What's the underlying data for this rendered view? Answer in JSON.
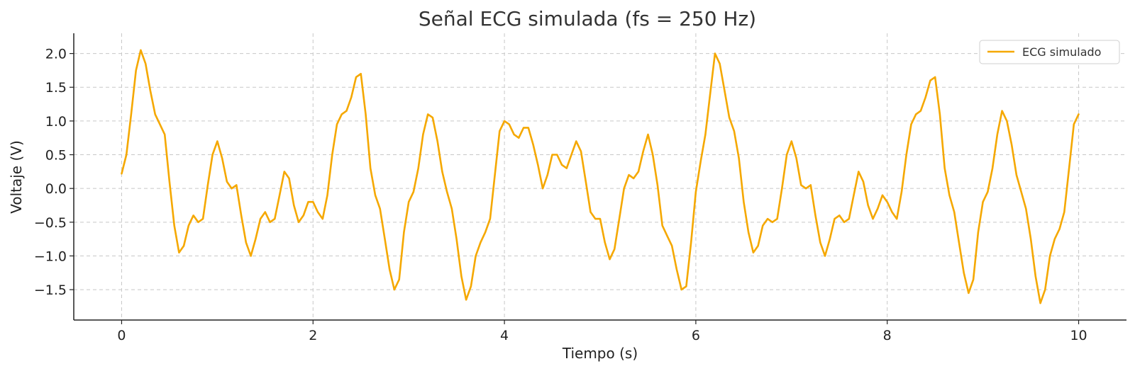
{
  "chart_data": {
    "type": "line",
    "title": "Señal ECG simulada (fs = 250 Hz)",
    "xlabel": "Tiempo (s)",
    "ylabel": "Voltaje (V)",
    "xlim": [
      -0.5,
      10.5
    ],
    "ylim": [
      -1.95,
      2.3
    ],
    "xticks": [
      0,
      2,
      4,
      6,
      8,
      10
    ],
    "yticks": [
      -1.5,
      -1.0,
      -0.5,
      0.0,
      0.5,
      1.0,
      1.5,
      2.0
    ],
    "ytick_labels": [
      "−1.5",
      "−1.0",
      "−0.5",
      "0.0",
      "0.5",
      "1.0",
      "1.5",
      "2.0"
    ],
    "xtick_labels": [
      "0",
      "2",
      "4",
      "6",
      "8",
      "10"
    ],
    "grid": true,
    "legend": {
      "position": "top-right"
    },
    "series": [
      {
        "name": "ECG simulado",
        "color": "#f5a800",
        "x": [
          0.0,
          0.05,
          0.1,
          0.15,
          0.2,
          0.25,
          0.3,
          0.35,
          0.4,
          0.45,
          0.5,
          0.55,
          0.6,
          0.65,
          0.7,
          0.75,
          0.8,
          0.85,
          0.9,
          0.95,
          1.0,
          1.05,
          1.1,
          1.15,
          1.2,
          1.25,
          1.3,
          1.35,
          1.4,
          1.45,
          1.5,
          1.55,
          1.6,
          1.65,
          1.7,
          1.75,
          1.8,
          1.85,
          1.9,
          1.95,
          2.0,
          2.05,
          2.1,
          2.15,
          2.2,
          2.25,
          2.3,
          2.35,
          2.4,
          2.45,
          2.5,
          2.55,
          2.6,
          2.65,
          2.7,
          2.75,
          2.8,
          2.85,
          2.9,
          2.95,
          3.0,
          3.05,
          3.1,
          3.15,
          3.2,
          3.25,
          3.3,
          3.35,
          3.4,
          3.45,
          3.5,
          3.55,
          3.6,
          3.65,
          3.7,
          3.75,
          3.8,
          3.85,
          3.9,
          3.95,
          4.0,
          4.05,
          4.1,
          4.15,
          4.2,
          4.25,
          4.3,
          4.35,
          4.4,
          4.45,
          4.5,
          4.55,
          4.6,
          4.65,
          4.7,
          4.75,
          4.8,
          4.85,
          4.9,
          4.95,
          5.0,
          5.05,
          5.1,
          5.15,
          5.2,
          5.25,
          5.3,
          5.35,
          5.4,
          5.45,
          5.5,
          5.55,
          5.6,
          5.65,
          5.7,
          5.75,
          5.8,
          5.85,
          5.9,
          5.95,
          6.0,
          6.05,
          6.1,
          6.15,
          6.2,
          6.25,
          6.3,
          6.35,
          6.4,
          6.45,
          6.5,
          6.55,
          6.6,
          6.65,
          6.7,
          6.75,
          6.8,
          6.85,
          6.9,
          6.95,
          7.0,
          7.05,
          7.1,
          7.15,
          7.2,
          7.25,
          7.3,
          7.35,
          7.4,
          7.45,
          7.5,
          7.55,
          7.6,
          7.65,
          7.7,
          7.75,
          7.8,
          7.85,
          7.9,
          7.95,
          8.0,
          8.05,
          8.1,
          8.15,
          8.2,
          8.25,
          8.3,
          8.35,
          8.4,
          8.45,
          8.5,
          8.55,
          8.6,
          8.65,
          8.7,
          8.75,
          8.8,
          8.85,
          8.9,
          8.95,
          9.0,
          9.05,
          9.1,
          9.15,
          9.2,
          9.25,
          9.3,
          9.35,
          9.4,
          9.45,
          9.5,
          9.55,
          9.6,
          9.65,
          9.7,
          9.75,
          9.8,
          9.85,
          9.9,
          9.95,
          10.0
        ],
        "values": [
          0.22,
          0.5,
          1.1,
          1.75,
          2.05,
          1.85,
          1.45,
          1.1,
          0.95,
          0.8,
          0.1,
          -0.55,
          -0.95,
          -0.85,
          -0.55,
          -0.4,
          -0.5,
          -0.45,
          0.05,
          0.5,
          0.7,
          0.45,
          0.1,
          0.0,
          0.05,
          -0.4,
          -0.8,
          -1.0,
          -0.75,
          -0.45,
          -0.35,
          -0.5,
          -0.45,
          -0.1,
          0.25,
          0.15,
          -0.25,
          -0.5,
          -0.4,
          -0.2,
          -0.2,
          -0.35,
          -0.45,
          -0.1,
          0.5,
          0.95,
          1.1,
          1.15,
          1.35,
          1.65,
          1.7,
          1.1,
          0.3,
          -0.1,
          -0.3,
          -0.75,
          -1.2,
          -1.5,
          -1.35,
          -0.65,
          -0.2,
          -0.05,
          0.3,
          0.8,
          1.1,
          1.05,
          0.7,
          0.25,
          -0.05,
          -0.3,
          -0.75,
          -1.3,
          -1.65,
          -1.45,
          -1.0,
          -0.8,
          -0.65,
          -0.45,
          0.2,
          0.85,
          1.0,
          0.95,
          0.8,
          0.75,
          0.9,
          0.9,
          0.65,
          0.35,
          0.0,
          0.2,
          0.5,
          0.5,
          0.35,
          0.3,
          0.5,
          0.7,
          0.55,
          0.1,
          -0.35,
          -0.45,
          -0.45,
          -0.8,
          -1.05,
          -0.9,
          -0.45,
          0.0,
          0.2,
          0.15,
          0.25,
          0.55,
          0.8,
          0.5,
          0.05,
          -0.55,
          -0.7,
          -0.85,
          -1.2,
          -1.5,
          -1.45,
          -0.8,
          -0.05,
          0.4,
          0.8,
          1.4,
          2.0,
          1.85,
          1.45,
          1.05,
          0.85,
          0.45,
          -0.2,
          -0.65,
          -0.95,
          -0.85,
          -0.55,
          -0.45,
          -0.5,
          -0.45,
          0.0,
          0.5,
          0.7,
          0.45,
          0.05,
          0.0,
          0.05,
          -0.4,
          -0.8,
          -1.0,
          -0.75,
          -0.45,
          -0.4,
          -0.5,
          -0.45,
          -0.1,
          0.25,
          0.1,
          -0.25,
          -0.45,
          -0.3,
          -0.1,
          -0.2,
          -0.35,
          -0.45,
          -0.05,
          0.5,
          0.95,
          1.1,
          1.15,
          1.35,
          1.6,
          1.65,
          1.1,
          0.3,
          -0.1,
          -0.35,
          -0.8,
          -1.25,
          -1.55,
          -1.35,
          -0.65,
          -0.2,
          -0.05,
          0.3,
          0.8,
          1.15,
          1.0,
          0.65,
          0.2,
          -0.05,
          -0.3,
          -0.75,
          -1.3,
          -1.7,
          -1.5,
          -1.0,
          -0.75,
          -0.6,
          -0.35,
          0.3,
          0.95,
          1.1
        ]
      }
    ]
  }
}
